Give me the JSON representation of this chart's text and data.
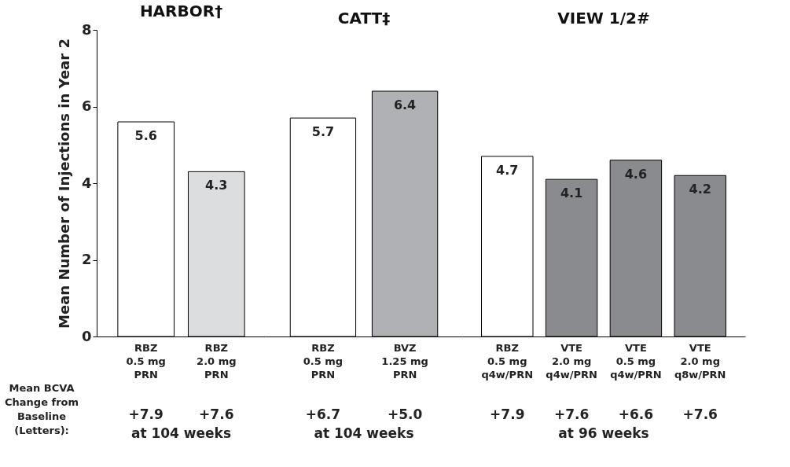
{
  "chart_data": [
    {
      "type": "bar",
      "title": "HARBOR†",
      "ylabel": "Mean Number of Injections in Year 2",
      "categories": [
        "RBZ\n0.5 mg\nPRN",
        "RBZ\n2.0 mg\nPRN"
      ],
      "values": [
        5.6,
        4.3
      ],
      "colors": [
        "#ffffff",
        "#dcdddf"
      ],
      "ylim": [
        0,
        8
      ],
      "yticks": [
        0,
        2,
        4,
        6,
        8
      ],
      "data_labels": true,
      "grid": false,
      "annotations": [
        "Mean BCVA Change from Baseline (Letters):",
        "+7.9",
        "+7.6",
        "at 104 weeks"
      ]
    },
    {
      "type": "bar",
      "title": "CATT‡",
      "categories": [
        "RBZ\n0.5 mg\nPRN",
        "BVZ\n1.25 mg\nPRN"
      ],
      "values": [
        5.7,
        6.4
      ],
      "colors": [
        "#ffffff",
        "#b0b1b4"
      ],
      "ylim": [
        0,
        8
      ],
      "yticks": [
        0,
        2,
        4,
        6,
        8
      ],
      "tick_labels": "x",
      "data_labels": true,
      "grid": false,
      "annotations": [
        "+6.7",
        "+5.0",
        "at 104 weeks"
      ]
    },
    {
      "type": "bar",
      "title": "VIEW 1/2#",
      "categories": [
        "RBZ\n0.5 mg\nq4w/PRN",
        "VTE\n2.0 mg\nq4w/PRN",
        "VTE\n0.5 mg\nq4w/PRN",
        "VTE\n2.0 mg\nq8w/PRN"
      ],
      "values": [
        4.7,
        4.1,
        4.6,
        4.2
      ],
      "colors": [
        "#ffffff",
        "#8a8b8e",
        "#8a8b8e",
        "#8a8b8e"
      ],
      "ylim": [
        0,
        8
      ],
      "yticks": [
        0,
        2,
        4,
        6,
        8
      ],
      "tick_labels": "x",
      "data_labels": true,
      "grid": false,
      "annotations": [
        "+7.9",
        "+7.6",
        "+6.6",
        "+7.6",
        "at 96 weeks"
      ]
    }
  ]
}
